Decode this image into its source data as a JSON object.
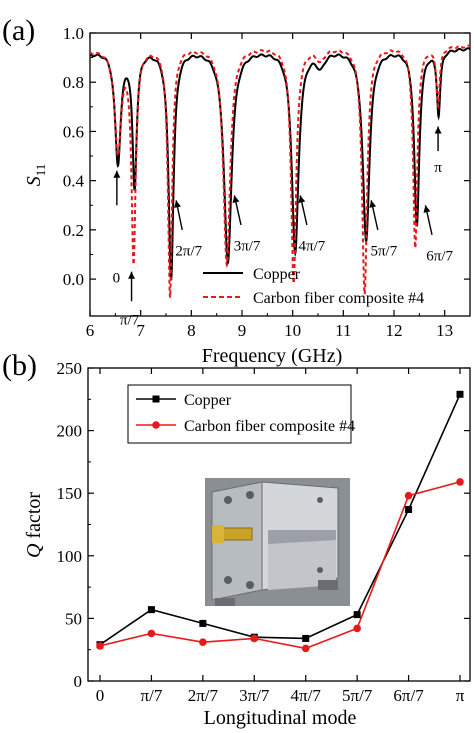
{
  "chart_data": [
    {
      "type": "line",
      "panel_label": "(a)",
      "xlabel": "Frequency (GHz)",
      "ylabel_main": "S",
      "ylabel_sub": "11",
      "xlim": [
        6,
        13.5
      ],
      "ylim": [
        -0.15,
        1.0
      ],
      "xticks": [
        6,
        7,
        8,
        9,
        10,
        11,
        12,
        13
      ],
      "yticks": [
        0.0,
        0.2,
        0.4,
        0.6,
        0.8,
        1.0
      ],
      "ytick_labels": [
        "0.0",
        "0.2",
        "0.4",
        "0.6",
        "0.8",
        "1.0"
      ],
      "legend_position": "bottom-right",
      "series": [
        {
          "name": "Copper",
          "color": "#000000",
          "dash": "solid",
          "baseline": 0.94,
          "resonances": [
            {
              "f": 6.55,
              "depth": 0.46,
              "width": 0.07
            },
            {
              "f": 6.88,
              "depth": 0.55,
              "width": 0.05
            },
            {
              "f": 7.6,
              "depth": 0.93,
              "width": 0.06
            },
            {
              "f": 8.72,
              "depth": 0.87,
              "width": 0.09
            },
            {
              "f": 10.05,
              "depth": 0.83,
              "width": 0.08
            },
            {
              "f": 10.55,
              "depth": 0.06,
              "width": 0.1
            },
            {
              "f": 11.45,
              "depth": 0.78,
              "width": 0.08
            },
            {
              "f": 12.45,
              "depth": 0.72,
              "width": 0.06
            },
            {
              "f": 12.88,
              "depth": 0.26,
              "width": 0.04
            }
          ]
        },
        {
          "name": "Carbon fiber composite #4",
          "color": "#e8191a",
          "dash": "dashed",
          "baseline": 0.95,
          "resonances": [
            {
              "f": 6.55,
              "depth": 0.42,
              "width": 0.08
            },
            {
              "f": 6.86,
              "depth": 0.86,
              "width": 0.05
            },
            {
              "f": 7.58,
              "depth": 1.01,
              "width": 0.05
            },
            {
              "f": 8.7,
              "depth": 0.89,
              "width": 0.08
            },
            {
              "f": 10.02,
              "depth": 0.96,
              "width": 0.06
            },
            {
              "f": 10.55,
              "depth": 0.05,
              "width": 0.1
            },
            {
              "f": 11.42,
              "depth": 1.01,
              "width": 0.06
            },
            {
              "f": 12.42,
              "depth": 0.82,
              "width": 0.05
            },
            {
              "f": 12.87,
              "depth": 0.23,
              "width": 0.04
            }
          ]
        }
      ],
      "annotations": [
        {
          "text": "0",
          "x": 6.52,
          "y": 0.01,
          "arrow_from": [
            6.53,
            0.3
          ],
          "arrow_to": [
            6.53,
            0.44
          ],
          "text_pos": "below"
        },
        {
          "text": "π/7",
          "x": 6.78,
          "y": -0.16,
          "arrow_from": [
            6.82,
            -0.09
          ],
          "arrow_to": [
            6.82,
            0.03
          ],
          "text_pos": "below"
        },
        {
          "text": "2π/7",
          "x": 7.95,
          "y": 0.12,
          "arrow_from": [
            7.82,
            0.2
          ],
          "arrow_to": [
            7.7,
            0.32
          ],
          "text_pos": "below"
        },
        {
          "text": "3π/7",
          "x": 9.1,
          "y": 0.14,
          "arrow_from": [
            8.98,
            0.22
          ],
          "arrow_to": [
            8.85,
            0.34
          ],
          "text_pos": "below"
        },
        {
          "text": "4π/7",
          "x": 10.38,
          "y": 0.14,
          "arrow_from": [
            10.28,
            0.22
          ],
          "arrow_to": [
            10.15,
            0.34
          ],
          "text_pos": "below"
        },
        {
          "text": "5π/7",
          "x": 11.8,
          "y": 0.12,
          "arrow_from": [
            11.68,
            0.2
          ],
          "arrow_to": [
            11.55,
            0.32
          ],
          "text_pos": "below"
        },
        {
          "text": "6π/7",
          "x": 12.9,
          "y": 0.1,
          "arrow_from": [
            12.75,
            0.18
          ],
          "arrow_to": [
            12.62,
            0.3
          ],
          "text_pos": "below"
        },
        {
          "text": "π",
          "x": 12.87,
          "y": 0.46,
          "arrow_from": [
            12.87,
            0.52
          ],
          "arrow_to": [
            12.87,
            0.62
          ],
          "text_pos": "below"
        }
      ]
    },
    {
      "type": "line",
      "panel_label": "(b)",
      "xlabel": "Longitudinal mode",
      "ylabel_main": "Q",
      "ylabel_rest": " factor",
      "categories": [
        "0",
        "π/7",
        "2π/7",
        "3π/7",
        "4π/7",
        "5π/7",
        "6π/7",
        "π"
      ],
      "ylim": [
        0,
        250
      ],
      "yticks": [
        0,
        50,
        100,
        150,
        200,
        250
      ],
      "legend_position": "top-left",
      "series": [
        {
          "name": "Copper",
          "color": "#000000",
          "marker": "square",
          "values": [
            29,
            57,
            46,
            35,
            34,
            53,
            137,
            229
          ]
        },
        {
          "name": "Carbon fiber composite #4",
          "color": "#e8191a",
          "marker": "circle",
          "values": [
            28,
            38,
            31,
            34,
            26,
            42,
            148,
            159
          ]
        }
      ]
    }
  ]
}
